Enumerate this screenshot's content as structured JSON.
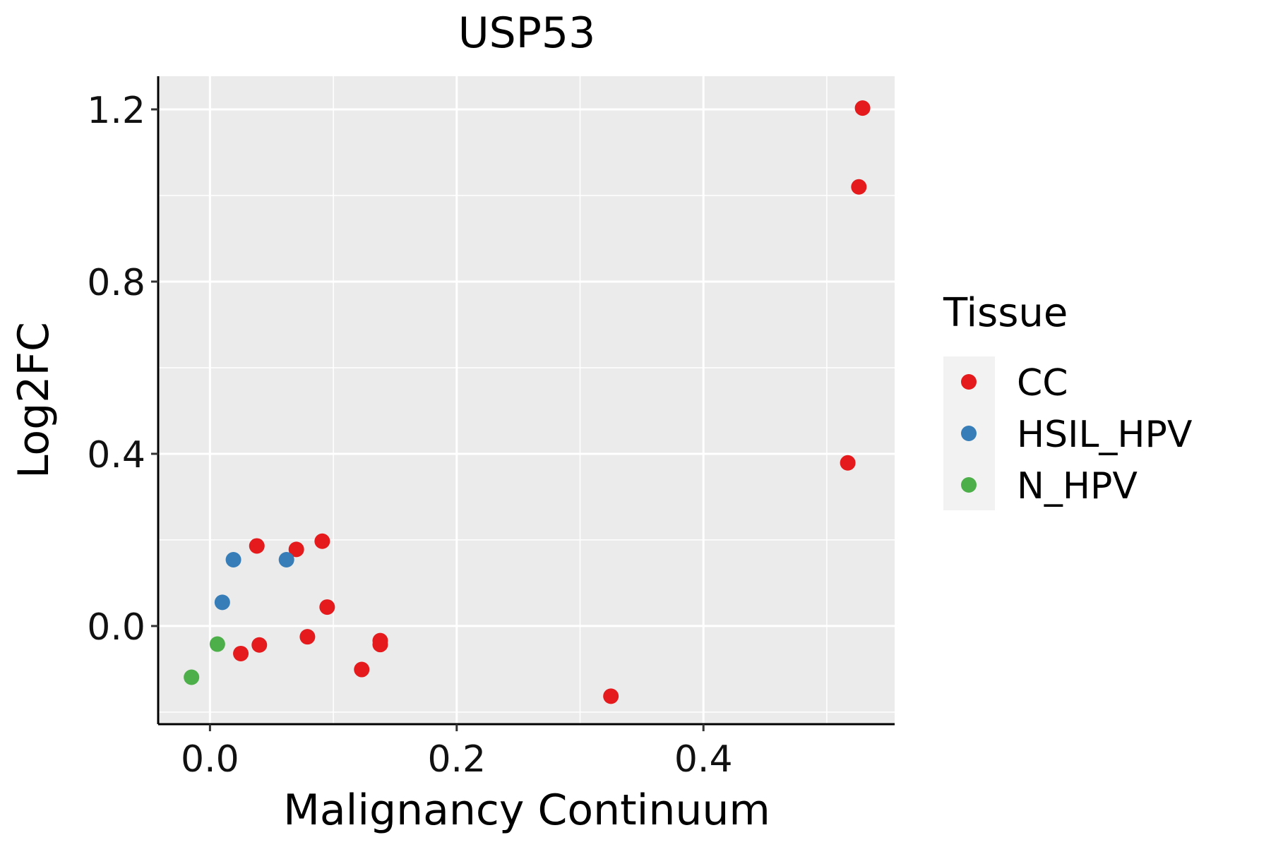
{
  "chart_data": {
    "type": "scatter",
    "title": "USP53",
    "xlabel": "Malignancy Continuum",
    "ylabel": "Log2FC",
    "xlim": [
      -0.042,
      0.555
    ],
    "ylim": [
      -0.228,
      1.277
    ],
    "x_ticks": [
      {
        "value": 0.0,
        "label": "0.0"
      },
      {
        "value": 0.2,
        "label": "0.2"
      },
      {
        "value": 0.4,
        "label": "0.4"
      }
    ],
    "y_ticks": [
      {
        "value": 0.0,
        "label": "0.0"
      },
      {
        "value": 0.4,
        "label": "0.4"
      },
      {
        "value": 0.8,
        "label": "0.8"
      },
      {
        "value": 1.2,
        "label": "1.2"
      }
    ],
    "x_minor_grid": [
      0.1,
      0.3,
      0.5
    ],
    "y_minor_grid": [
      -0.2,
      0.2,
      0.6,
      1.0
    ],
    "grid": true,
    "legend": {
      "title": "Tissue",
      "position": "right",
      "entries": [
        {
          "name": "CC",
          "color": "#e41a1c"
        },
        {
          "name": "HSIL_HPV",
          "color": "#377eb8"
        },
        {
          "name": "N_HPV",
          "color": "#4daf4a"
        }
      ]
    },
    "series": [
      {
        "name": "CC",
        "color": "#e41a1c",
        "points": [
          {
            "x": 0.038,
            "y": 0.186
          },
          {
            "x": 0.07,
            "y": 0.178
          },
          {
            "x": 0.091,
            "y": 0.197
          },
          {
            "x": 0.095,
            "y": 0.044
          },
          {
            "x": 0.079,
            "y": -0.025
          },
          {
            "x": 0.025,
            "y": -0.064
          },
          {
            "x": 0.04,
            "y": -0.044
          },
          {
            "x": 0.138,
            "y": -0.034
          },
          {
            "x": 0.138,
            "y": -0.043
          },
          {
            "x": 0.123,
            "y": -0.101
          },
          {
            "x": 0.325,
            "y": -0.163
          },
          {
            "x": 0.517,
            "y": 0.379
          },
          {
            "x": 0.526,
            "y": 1.02
          },
          {
            "x": 0.529,
            "y": 1.203
          }
        ]
      },
      {
        "name": "HSIL_HPV",
        "color": "#377eb8",
        "points": [
          {
            "x": 0.019,
            "y": 0.154
          },
          {
            "x": 0.01,
            "y": 0.055
          },
          {
            "x": 0.062,
            "y": 0.154
          }
        ]
      },
      {
        "name": "N_HPV",
        "color": "#4daf4a",
        "points": [
          {
            "x": 0.006,
            "y": -0.042
          },
          {
            "x": -0.015,
            "y": -0.119
          }
        ]
      }
    ]
  }
}
